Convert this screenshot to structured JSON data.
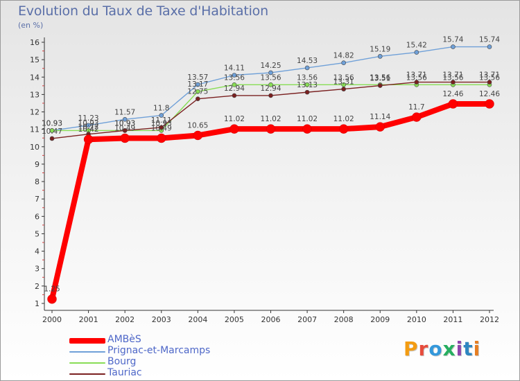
{
  "title": "Evolution du Taux de Taxe d'Habitation",
  "unit_label": "(en %)",
  "logo_text": "Proxiti",
  "logo_colors": [
    "#f39c12",
    "#e74c3c",
    "#3498db",
    "#27ae60",
    "#8e44ad",
    "#2e86c1",
    "#e67e22"
  ],
  "chart_data": {
    "type": "line",
    "x": [
      2000,
      2001,
      2002,
      2003,
      2004,
      2005,
      2006,
      2007,
      2008,
      2009,
      2010,
      2011,
      2012
    ],
    "ylim": [
      1,
      16
    ],
    "yticks": [
      1,
      2,
      3,
      4,
      5,
      6,
      7,
      8,
      9,
      10,
      11,
      12,
      13,
      14,
      15,
      16
    ],
    "grid": false,
    "legend_position": "bottom-left",
    "series": [
      {
        "name": "AMBèS",
        "color": "#ff0000",
        "values": [
          1.25,
          10.42,
          10.49,
          10.49,
          10.65,
          11.02,
          11.02,
          11.02,
          11.02,
          11.14,
          11.7,
          12.46,
          12.46
        ],
        "labels": [
          "1.25",
          "10.42",
          "10.49",
          "10.49",
          "10.65",
          "11.02",
          "11.02",
          "11.02",
          "11.02",
          "11.14",
          "11.7",
          "12.46",
          "12.46"
        ]
      },
      {
        "name": "Prignac-et-Marcamps",
        "color": "#6fa0d8",
        "values": [
          10.93,
          11.23,
          11.57,
          11.8,
          13.57,
          14.11,
          14.25,
          14.53,
          14.82,
          15.19,
          15.42,
          15.74,
          15.74
        ],
        "labels": [
          "10.93",
          "11.23",
          "11.57",
          "11.8",
          "13.57",
          "14.11",
          "14.25",
          "14.53",
          "14.82",
          "15.19",
          "15.42",
          "15.74",
          "15.74"
        ]
      },
      {
        "name": "Bourg",
        "color": "#88dd55",
        "values": [
          10.93,
          10.93,
          10.93,
          10.93,
          13.17,
          13.56,
          13.56,
          13.56,
          13.56,
          13.56,
          13.56,
          13.56,
          13.56
        ],
        "labels": [
          "10.93",
          "10.93",
          "10.93",
          "10.93",
          "13.17",
          "13.56",
          "13.56",
          "13.56",
          "13.56",
          "13.56",
          "13.56",
          "13.56",
          "13.56"
        ]
      },
      {
        "name": "Tauriac",
        "color": "#7a2020",
        "values": [
          10.47,
          10.72,
          10.93,
          11.11,
          12.75,
          12.94,
          12.94,
          13.13,
          13.31,
          13.51,
          13.71,
          13.71,
          13.71
        ],
        "labels": [
          "10.47",
          "10.72",
          "10.93",
          "11.11",
          "12.75",
          "12.94",
          "12.94",
          "13.13",
          "13.31",
          "13.51",
          "13.71",
          "13.71",
          "13.71"
        ]
      }
    ]
  }
}
